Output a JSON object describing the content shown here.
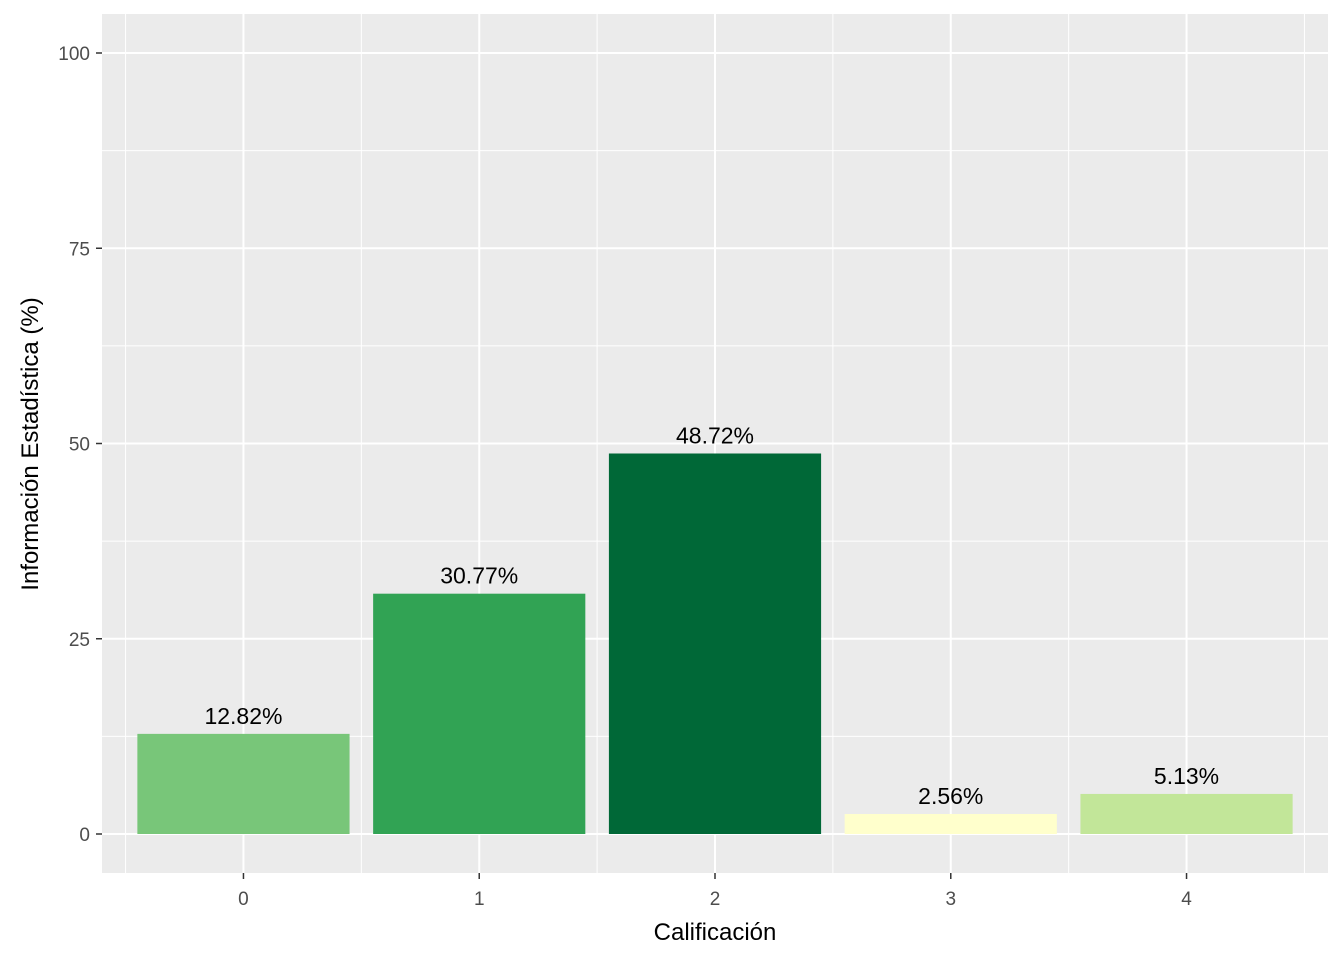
{
  "chart_data": {
    "type": "bar",
    "xlabel": "Calificación",
    "ylabel": "Información Estadística (%)",
    "categories": [
      "0",
      "1",
      "2",
      "3",
      "4"
    ],
    "values": [
      12.82,
      30.77,
      48.72,
      2.56,
      5.13
    ],
    "value_labels": [
      "12.82%",
      "30.77%",
      "48.72%",
      "2.56%",
      "5.13%"
    ],
    "bar_colors": [
      "#78c679",
      "#31a354",
      "#006837",
      "#ffffcc",
      "#c2e699"
    ],
    "ylim": [
      0,
      100
    ],
    "yticks": [
      0,
      25,
      50,
      75,
      100
    ],
    "ytick_labels": [
      "0",
      "25",
      "50",
      "75",
      "100"
    ],
    "grid": true,
    "panel_background": "#ebebeb",
    "gridline_color": "#ffffff",
    "legend": "none"
  }
}
